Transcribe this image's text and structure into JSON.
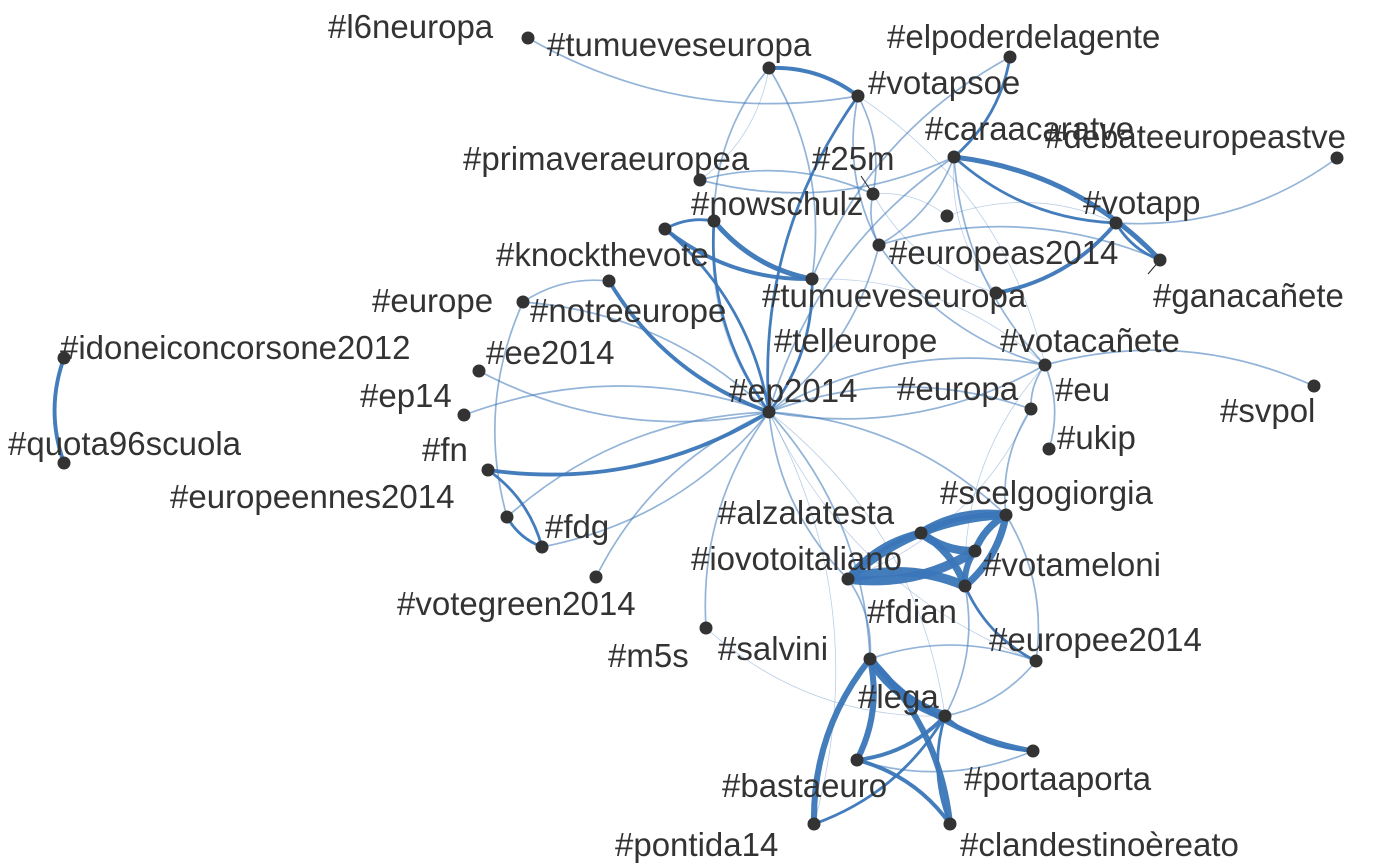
{
  "colors": {
    "edge": "#3a76b8",
    "node": "#333333",
    "label": "#333333",
    "background": "#ffffff"
  },
  "nodes": [
    {
      "id": "l6neuropa",
      "label": "#l6neuropa"
    },
    {
      "id": "tumueveseuropa_top",
      "label": "#tumueveseuropa"
    },
    {
      "id": "elpoderdelagente",
      "label": "#elpoderdelagente"
    },
    {
      "id": "votapsoe",
      "label": "#votapsoe"
    },
    {
      "id": "caraacaratve",
      "label": "#caraacaratve"
    },
    {
      "id": "debateeuropeastve",
      "label": "#debateeuropeastve"
    },
    {
      "id": "primaveraeuropea",
      "label": "#primaveraeuropea"
    },
    {
      "id": "25m",
      "label": "#25m"
    },
    {
      "id": "nowschulz",
      "label": "#nowschulz"
    },
    {
      "id": "votapp",
      "label": "#votapp"
    },
    {
      "id": "europeas2014",
      "label": "#europeas2014"
    },
    {
      "id": "knockthevote",
      "label": "#knockthevote"
    },
    {
      "id": "ganacanete",
      "label": "#ganacañete"
    },
    {
      "id": "tumueveseuropa",
      "label": "#tumueveseuropa"
    },
    {
      "id": "europe",
      "label": "#europe"
    },
    {
      "id": "notreeurope",
      "label": "#notreeurope"
    },
    {
      "id": "telleurope",
      "label": "#telleurope"
    },
    {
      "id": "votacanete",
      "label": "#votacañete"
    },
    {
      "id": "idoneiconcorsone2012",
      "label": "#idoneiconcorsone2012"
    },
    {
      "id": "ee2014",
      "label": "#ee2014"
    },
    {
      "id": "ep14",
      "label": "#ep14"
    },
    {
      "id": "ep2014",
      "label": "#ep2014"
    },
    {
      "id": "europa",
      "label": "#europa"
    },
    {
      "id": "eu",
      "label": "#eu"
    },
    {
      "id": "svpol",
      "label": "#svpol"
    },
    {
      "id": "quota96scuola",
      "label": "#quota96scuola"
    },
    {
      "id": "fn",
      "label": "#fn"
    },
    {
      "id": "ukip",
      "label": "#ukip"
    },
    {
      "id": "europeennes2014",
      "label": "#europeennes2014"
    },
    {
      "id": "scelgogiorgia",
      "label": "#scelgogiorgia"
    },
    {
      "id": "alzalatesta",
      "label": "#alzalatesta"
    },
    {
      "id": "fdg",
      "label": "#fdg"
    },
    {
      "id": "iovotoitaliano",
      "label": "#iovotoitaliano"
    },
    {
      "id": "votameloni",
      "label": "#votameloni"
    },
    {
      "id": "votegreen2014",
      "label": "#votegreen2014"
    },
    {
      "id": "fdian",
      "label": "#fdian"
    },
    {
      "id": "europee2014",
      "label": "#europee2014"
    },
    {
      "id": "m5s",
      "label": "#m5s"
    },
    {
      "id": "salvini",
      "label": "#salvini"
    },
    {
      "id": "lega",
      "label": "#lega"
    },
    {
      "id": "portaaporta",
      "label": "#portaaporta"
    },
    {
      "id": "bastaeuro",
      "label": "#bastaeuro"
    },
    {
      "id": "pontida14",
      "label": "#pontida14"
    },
    {
      "id": "clandestinoereato",
      "label": "#clandestinoèreato"
    }
  ],
  "edges": [
    {
      "source": "idoneiconcorsone2012",
      "target": "quota96scuola",
      "weight": 3
    },
    {
      "source": "ep2014",
      "target": "nowschulz",
      "weight": 2
    },
    {
      "source": "ep2014",
      "target": "knockthevote",
      "weight": 2
    },
    {
      "source": "ep2014",
      "target": "notreeurope",
      "weight": 3
    },
    {
      "source": "ep2014",
      "target": "tumueveseuropa",
      "weight": 2
    },
    {
      "source": "ep2014",
      "target": "votapsoe",
      "weight": 2
    },
    {
      "source": "ep2014",
      "target": "europe",
      "weight": 1
    },
    {
      "source": "ep2014",
      "target": "ee2014",
      "weight": 1
    },
    {
      "source": "ep2014",
      "target": "ep14",
      "weight": 1
    },
    {
      "source": "ep2014",
      "target": "fn",
      "weight": 3
    },
    {
      "source": "ep2014",
      "target": "europeennes2014",
      "weight": 1
    },
    {
      "source": "ep2014",
      "target": "fdg",
      "weight": 1
    },
    {
      "source": "ep2014",
      "target": "votegreen2014",
      "weight": 1
    },
    {
      "source": "ep2014",
      "target": "europa",
      "weight": 1
    },
    {
      "source": "ep2014",
      "target": "eu",
      "weight": 1
    },
    {
      "source": "ep2014",
      "target": "scelgogiorgia",
      "weight": 1
    },
    {
      "source": "ep2014",
      "target": "iovotoitaliano",
      "weight": 1
    },
    {
      "source": "ep2014",
      "target": "salvini",
      "weight": 1
    },
    {
      "source": "ep2014",
      "target": "m5s",
      "weight": 1
    },
    {
      "source": "ep2014",
      "target": "votacanete",
      "weight": 1
    },
    {
      "source": "ep2014",
      "target": "europeas2014",
      "weight": 1
    },
    {
      "source": "ep2014",
      "target": "caraacaratve",
      "weight": 1
    },
    {
      "source": "nowschulz",
      "target": "tumueveseuropa",
      "weight": 4
    },
    {
      "source": "knockthevote",
      "target": "nowschulz",
      "weight": 2
    },
    {
      "source": "knockthevote",
      "target": "tumueveseuropa",
      "weight": 3
    },
    {
      "source": "tumueveseuropa_top",
      "target": "votapsoe",
      "weight": 3
    },
    {
      "source": "tumueveseuropa_top",
      "target": "nowschulz",
      "weight": 1
    },
    {
      "source": "tumueveseuropa_top",
      "target": "tumueveseuropa",
      "weight": 1
    },
    {
      "source": "l6neuropa",
      "target": "votapsoe",
      "weight": 1
    },
    {
      "source": "votapsoe",
      "target": "25m",
      "weight": 1
    },
    {
      "source": "votapsoe",
      "target": "europeas2014",
      "weight": 1
    },
    {
      "source": "elpoderdelagente",
      "target": "caraacaratve",
      "weight": 2
    },
    {
      "source": "elpoderdelagente",
      "target": "tumueveseuropa",
      "weight": 1
    },
    {
      "source": "caraacaratve",
      "target": "ganacanete",
      "weight": 4
    },
    {
      "source": "caraacaratve",
      "target": "votapp",
      "weight": 2
    },
    {
      "source": "caraacaratve",
      "target": "europeas2014",
      "weight": 1
    },
    {
      "source": "caraacaratve",
      "target": "votacanete",
      "weight": 1
    },
    {
      "source": "caraacaratve",
      "target": "primaveraeuropea",
      "weight": 1
    },
    {
      "source": "votapp",
      "target": "debateeuropeastve",
      "weight": 1
    },
    {
      "source": "votapp",
      "target": "tumueveseuropa_r",
      "weight": 3
    },
    {
      "source": "votapp",
      "target": "ganacanete",
      "weight": 2
    },
    {
      "source": "primaveraeuropea",
      "target": "25m",
      "weight": 1
    },
    {
      "source": "25m",
      "target": "europeas2014",
      "weight": 1
    },
    {
      "source": "europeas2014",
      "target": "ganacanete",
      "weight": 1
    },
    {
      "source": "europeas2014",
      "target": "votacanete",
      "weight": 1
    },
    {
      "source": "votacanete",
      "target": "svpol",
      "weight": 1
    },
    {
      "source": "eu",
      "target": "europa",
      "weight": 1
    },
    {
      "source": "eu",
      "target": "ukip",
      "weight": 1
    },
    {
      "source": "europa",
      "target": "scelgogiorgia",
      "weight": 1
    },
    {
      "source": "europe",
      "target": "notreeurope",
      "weight": 1
    },
    {
      "source": "europe",
      "target": "europeennes2014",
      "weight": 1
    },
    {
      "source": "fn",
      "target": "fdg",
      "weight": 2
    },
    {
      "source": "europeennes2014",
      "target": "fdg",
      "weight": 2
    },
    {
      "source": "alzalatesta",
      "target": "scelgogiorgia",
      "weight": 7
    },
    {
      "source": "alzalatesta",
      "target": "votameloni",
      "weight": 7
    },
    {
      "source": "alzalatesta",
      "target": "fdian",
      "weight": 6
    },
    {
      "source": "alzalatesta",
      "target": "iovotoitaliano",
      "weight": 6
    },
    {
      "source": "iovotoitaliano",
      "target": "scelgogiorgia",
      "weight": 7
    },
    {
      "source": "iovotoitaliano",
      "target": "votameloni",
      "weight": 8
    },
    {
      "source": "iovotoitaliano",
      "target": "fdian",
      "weight": 8
    },
    {
      "source": "scelgogiorgia",
      "target": "votameloni",
      "weight": 6
    },
    {
      "source": "scelgogiorgia",
      "target": "fdian",
      "weight": 6
    },
    {
      "source": "votameloni",
      "target": "fdian",
      "weight": 5
    },
    {
      "source": "europee2014",
      "target": "fdian",
      "weight": 2
    },
    {
      "source": "europee2014",
      "target": "scelgogiorgia",
      "weight": 1
    },
    {
      "source": "europee2014",
      "target": "lega",
      "weight": 1
    },
    {
      "source": "salvini",
      "target": "lega",
      "weight": 8
    },
    {
      "source": "salvini",
      "target": "bastaeuro",
      "weight": 5
    },
    {
      "source": "salvini",
      "target": "pontida14",
      "weight": 5
    },
    {
      "source": "salvini",
      "target": "clandestinoereato",
      "weight": 5
    },
    {
      "source": "salvini",
      "target": "portaaporta",
      "weight": 4
    },
    {
      "source": "lega",
      "target": "bastaeuro",
      "weight": 3
    },
    {
      "source": "lega",
      "target": "portaaporta",
      "weight": 2
    },
    {
      "source": "lega",
      "target": "pontida14",
      "weight": 2
    },
    {
      "source": "lega",
      "target": "clandestinoereato",
      "weight": 2
    },
    {
      "source": "bastaeuro",
      "target": "clandestinoereato",
      "weight": 3
    },
    {
      "source": "bastaeuro",
      "target": "portaaporta",
      "weight": 1
    },
    {
      "source": "salvini",
      "target": "europee2014",
      "weight": 1
    },
    {
      "source": "salvini",
      "target": "iovotoitaliano",
      "weight": 1
    },
    {
      "source": "fdian",
      "target": "lega",
      "weight": 1
    }
  ]
}
